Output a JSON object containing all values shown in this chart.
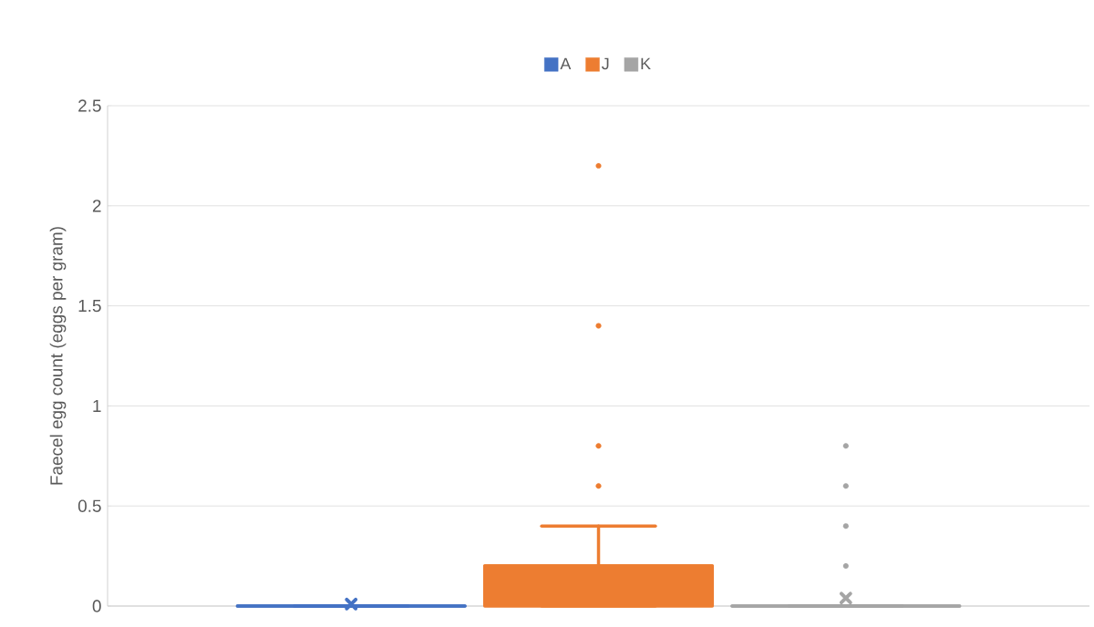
{
  "chart_data": {
    "type": "box",
    "ylabel": "Faecel egg count (eggs per gram)",
    "categories": [
      null
    ],
    "series": [
      {
        "name": "A",
        "color": "#4472c4",
        "boxes": [
          {
            "low": 0,
            "q1": 0,
            "median": 0,
            "q3": 0,
            "high": 0,
            "mean": 0.01
          }
        ]
      },
      {
        "name": "J",
        "color": "#ed7d31",
        "boxes": [
          {
            "low": 0,
            "q1": 0,
            "median": 0.2,
            "q3": 0.2,
            "high": 0.4,
            "outliers": [
              0.6,
              0.8,
              1.4,
              2.2
            ]
          }
        ]
      },
      {
        "name": "K",
        "color": "#a5a5a5",
        "boxes": [
          {
            "low": 0,
            "q1": 0,
            "median": 0,
            "q3": 0,
            "high": 0,
            "mean": 0.04,
            "outliers": [
              0.2,
              0.4,
              0.6,
              0.8
            ]
          }
        ]
      }
    ],
    "ylim": [
      0,
      2.5
    ],
    "yticks": [
      0,
      0.5,
      1,
      1.5,
      2,
      2.5
    ],
    "grid": "y",
    "legend": "top"
  }
}
